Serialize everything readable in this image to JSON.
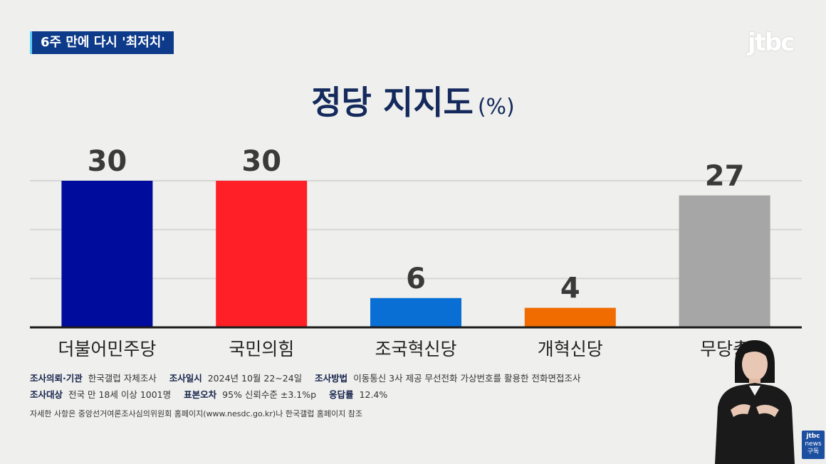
{
  "headline": "6주 만에 다시 '최저치'",
  "logo": "jtbc",
  "chart_data": {
    "type": "bar",
    "title": "정당 지지도",
    "unit": "(%)",
    "categories": [
      "더불어민주당",
      "국민의힘",
      "조국혁신당",
      "개혁신당",
      "무당층"
    ],
    "values": [
      30,
      30,
      6,
      4,
      27
    ],
    "colors": [
      "#000c9c",
      "#fe2026",
      "#0a6fd4",
      "#f06c00",
      "#a6a6a6"
    ],
    "ylim": [
      0,
      30
    ],
    "grid": true,
    "xlabel": "",
    "ylabel": ""
  },
  "footnote": {
    "row1": [
      {
        "label": "조사의뢰·기관",
        "value": "한국갤럽 자체조사"
      },
      {
        "label": "조사일시",
        "value": "2024년 10월 22~24일"
      },
      {
        "label": "조사방법",
        "value": "이동통신 3사 제공 무선전화 가상번호를 활용한 전화면접조사"
      }
    ],
    "row2": [
      {
        "label": "조사대상",
        "value": "전국 만 18세 이상 1001명"
      },
      {
        "label": "표본오차",
        "value": "95% 신뢰수준 ±3.1%p"
      },
      {
        "label": "응답률",
        "value": "12.4%"
      }
    ],
    "note": "자세한 사항은 중앙선거여론조사심의위원회 홈페이지(www.nesdc.go.kr)나 한국갤럽 홈페이지 참조"
  },
  "badge": {
    "line1": "jtbc",
    "line2": "news",
    "line3": "구독"
  }
}
